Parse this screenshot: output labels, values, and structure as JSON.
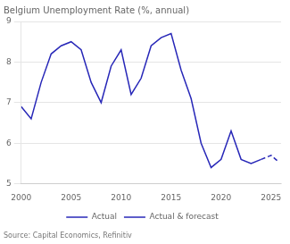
{
  "chart_data": {
    "type": "line",
    "title": "Belgium Unemployment Rate (%, annual)",
    "source": "Source: Capital Economics, Refinitiv",
    "series": [
      {
        "name": "Actual",
        "color": "#2828B8",
        "line_style": "solid",
        "x": [
          2000,
          2001,
          2002,
          2003,
          2004,
          2005,
          2006,
          2007,
          2008,
          2009,
          2010,
          2011,
          2012,
          2013,
          2014,
          2015,
          2016,
          2017,
          2018,
          2019,
          2020,
          2021,
          2022,
          2023,
          2024
        ],
        "values": [
          6.9,
          6.6,
          7.5,
          8.2,
          8.4,
          8.5,
          8.3,
          7.5,
          7.0,
          7.9,
          8.3,
          7.2,
          7.6,
          8.4,
          8.6,
          8.7,
          7.8,
          7.1,
          6.0,
          5.4,
          5.6,
          6.3,
          5.6,
          5.5,
          5.6
        ]
      },
      {
        "name": "Actual & forecast",
        "color": "#2828B8",
        "line_style": "dashed",
        "x": [
          2024,
          2025,
          2025.7
        ],
        "values": [
          5.6,
          5.7,
          5.55
        ]
      }
    ],
    "xlim": [
      2000,
      2026
    ],
    "xticks": [
      2000,
      2005,
      2010,
      2015,
      2020,
      2025
    ],
    "ylim": [
      5,
      9
    ],
    "yticks": [
      5,
      6,
      7,
      8,
      9
    ],
    "grid": "y",
    "legend": "bottom"
  }
}
